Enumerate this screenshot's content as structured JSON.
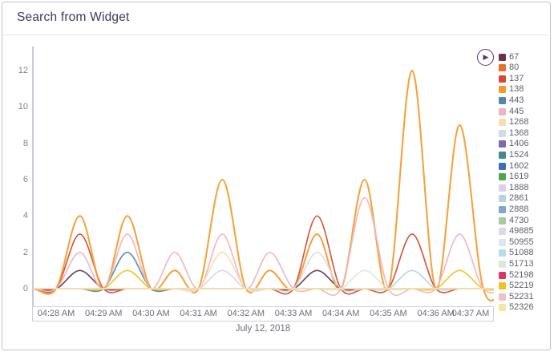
{
  "widget": {
    "title": "Search from Widget"
  },
  "icons": {
    "play_button": "play-circle",
    "play_glyph": "▶"
  },
  "colors": {
    "title_text": "#3b3a56",
    "axis_line": "#c9c9d6",
    "tick_text": "#6e6e78",
    "play_icon": "#5d3370",
    "widget_border": "#c3c3ca"
  },
  "chart_data": {
    "type": "line",
    "title": "Search from Widget",
    "xlabel": "",
    "ylabel": "",
    "x_label_date": "July 12, 2018",
    "x_ticks": [
      "04:28 AM",
      "04:29 AM",
      "04:30 AM",
      "04:31 AM",
      "04:32 AM",
      "04:33 AM",
      "04:34 AM",
      "04:35 AM",
      "04:36 AM",
      "04:37 AM"
    ],
    "x": [
      "04:28:00",
      "04:28:30",
      "04:29:00",
      "04:29:30",
      "04:30:00",
      "04:30:30",
      "04:31:00",
      "04:31:30",
      "04:32:00",
      "04:32:30",
      "04:33:00",
      "04:33:30",
      "04:34:00",
      "04:34:30",
      "04:35:00",
      "04:35:30",
      "04:36:00",
      "04:36:30",
      "04:37:00"
    ],
    "yticks": [
      0,
      2,
      4,
      6,
      8,
      10,
      12
    ],
    "ylim": [
      0,
      12
    ],
    "grid": false,
    "legend_position": "right",
    "series": [
      {
        "name": "67",
        "color": "#69324f",
        "values": [
          0,
          1,
          0,
          0,
          0,
          0,
          0,
          0,
          0,
          0,
          0,
          1,
          0,
          0,
          0,
          0,
          0,
          0,
          0
        ]
      },
      {
        "name": "80",
        "color": "#e8702a",
        "values": [
          0,
          0,
          0,
          0,
          0,
          0,
          0,
          0,
          0,
          0,
          0,
          0,
          0,
          0,
          0,
          0,
          0,
          0,
          0
        ]
      },
      {
        "name": "137",
        "color": "#d44a33",
        "values": [
          0,
          3,
          0,
          0,
          0,
          0,
          0,
          0,
          0,
          0,
          0,
          4,
          0,
          0,
          0,
          3,
          0,
          0,
          0
        ]
      },
      {
        "name": "138",
        "color": "#f39c2d",
        "values": [
          0,
          4,
          0,
          4,
          0,
          1,
          0,
          6,
          0,
          1,
          0,
          3,
          0,
          6,
          0,
          12,
          0,
          9,
          0
        ]
      },
      {
        "name": "443",
        "color": "#5387a5",
        "values": [
          0,
          0,
          0,
          2,
          0,
          0,
          0,
          0,
          0,
          0,
          0,
          0,
          0,
          0,
          0,
          0,
          0,
          0,
          0
        ]
      },
      {
        "name": "445",
        "color": "#edb4bc",
        "values": [
          0,
          2,
          0,
          3,
          0,
          2,
          0,
          3,
          0,
          2,
          0,
          0,
          0,
          5,
          0,
          0,
          0,
          3,
          0
        ]
      },
      {
        "name": "1268",
        "color": "#f7dcb4",
        "values": [
          0,
          0,
          0,
          0,
          0,
          0,
          0,
          2,
          0,
          0,
          0,
          0,
          0,
          0,
          0,
          0,
          0,
          0,
          0
        ]
      },
      {
        "name": "1368",
        "color": "#ccdde6",
        "values": [
          0,
          0,
          0,
          0,
          0,
          0,
          0,
          0,
          0,
          0,
          0,
          0,
          0,
          0,
          0,
          0,
          0,
          0,
          0
        ]
      },
      {
        "name": "1406",
        "color": "#7a6bb0",
        "values": [
          0,
          0,
          0,
          0,
          0,
          0,
          0,
          0,
          0,
          0,
          0,
          0,
          0,
          0,
          0,
          0,
          0,
          0,
          0
        ]
      },
      {
        "name": "1524",
        "color": "#47888f",
        "values": [
          0,
          0,
          0,
          0,
          0,
          0,
          0,
          0,
          0,
          0,
          0,
          0,
          0,
          0,
          0,
          0,
          0,
          0,
          0
        ]
      },
      {
        "name": "1602",
        "color": "#3e6db5",
        "values": [
          0,
          0,
          0,
          0,
          0,
          0,
          0,
          0,
          0,
          0,
          0,
          0,
          0,
          0,
          0,
          0,
          0,
          0,
          0
        ]
      },
      {
        "name": "1619",
        "color": "#52a352",
        "values": [
          0,
          0,
          0,
          0,
          0,
          0,
          0,
          0,
          0,
          0,
          0,
          0,
          0,
          0,
          0,
          0,
          0,
          0,
          0
        ]
      },
      {
        "name": "1888",
        "color": "#d9d2ea",
        "values": [
          0,
          0,
          0,
          0,
          0,
          0,
          0,
          1,
          0,
          0,
          0,
          0,
          0,
          0,
          0,
          0,
          0,
          0,
          0
        ]
      },
      {
        "name": "2861",
        "color": "#b9d3e0",
        "values": [
          0,
          0,
          0,
          0,
          0,
          0,
          0,
          0,
          0,
          0,
          0,
          0,
          0,
          0,
          0,
          1,
          0,
          0,
          0
        ]
      },
      {
        "name": "2888",
        "color": "#7fa8c9",
        "values": [
          0,
          0,
          0,
          0,
          0,
          0,
          0,
          0,
          0,
          0,
          0,
          0,
          0,
          0,
          0,
          0,
          0,
          0,
          0
        ]
      },
      {
        "name": "4730",
        "color": "#a6cba1",
        "values": [
          0,
          0,
          0,
          0,
          0,
          0,
          0,
          0,
          0,
          0,
          0,
          0,
          0,
          0,
          0,
          0,
          0,
          0,
          0
        ]
      },
      {
        "name": "49885",
        "color": "#dcd9ec",
        "values": [
          0,
          0,
          0,
          0,
          0,
          0,
          0,
          0,
          0,
          0,
          0,
          2,
          0,
          0,
          0,
          0,
          0,
          0,
          0
        ]
      },
      {
        "name": "50955",
        "color": "#d8e8ee",
        "values": [
          0,
          0,
          0,
          0,
          0,
          0,
          0,
          0,
          0,
          0,
          0,
          0,
          0,
          0,
          0,
          0,
          0,
          0,
          0
        ]
      },
      {
        "name": "51088",
        "color": "#bcdbe8",
        "values": [
          0,
          0,
          0,
          0,
          0,
          0,
          0,
          0,
          0,
          0,
          0,
          0,
          0,
          0,
          0,
          0,
          0,
          0,
          0
        ]
      },
      {
        "name": "51713",
        "color": "#d9ead2",
        "values": [
          0,
          0,
          0,
          0,
          0,
          0,
          0,
          0,
          0,
          0,
          0,
          0,
          0,
          1,
          0,
          0,
          0,
          0,
          0
        ]
      },
      {
        "name": "52198",
        "color": "#d63a64",
        "values": [
          0,
          0,
          0,
          0,
          0,
          0,
          0,
          0,
          0,
          0,
          0,
          0,
          0,
          0,
          0,
          0,
          0,
          0,
          0
        ]
      },
      {
        "name": "52219",
        "color": "#f2c021",
        "values": [
          0,
          0,
          0,
          1,
          0,
          0,
          0,
          0,
          0,
          0,
          0,
          0,
          0,
          0,
          0,
          0,
          0,
          1,
          0
        ]
      },
      {
        "name": "52231",
        "color": "#eec0cb",
        "values": [
          0,
          0,
          0,
          0,
          0,
          0,
          0,
          0,
          0,
          0,
          0,
          0,
          0,
          0,
          0,
          0,
          0,
          0,
          0
        ]
      },
      {
        "name": "52326",
        "color": "#f6e5a9",
        "values": [
          0,
          0,
          0,
          0,
          0,
          0,
          0,
          0,
          0,
          0,
          0,
          0,
          0,
          0,
          0,
          0,
          0,
          0,
          0
        ]
      }
    ]
  }
}
